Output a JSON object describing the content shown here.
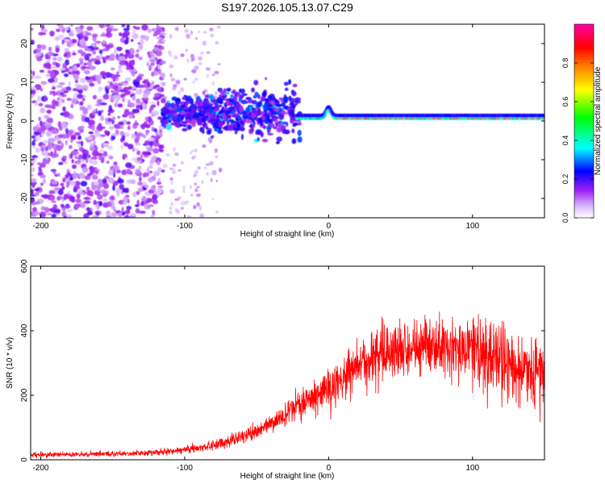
{
  "figure_title": "S197.2026.105.13.07.C29",
  "chart_data": [
    {
      "type": "heatmap",
      "title": "S197.2026.105.13.07.C29",
      "xlabel": "Height of straight line (km)",
      "ylabel": "Frequency (Hz)",
      "xlim": [
        -207,
        150
      ],
      "ylim": [
        -25,
        25
      ],
      "xticks": [
        -200,
        -100,
        0,
        100
      ],
      "xtick_labels": [
        "-200",
        "-100",
        "0",
        "100"
      ],
      "yticks": [
        -20,
        -10,
        0,
        10,
        20
      ],
      "ytick_labels": [
        "-20",
        "-10",
        "0",
        "10",
        "20"
      ],
      "grid": false,
      "colorbar": {
        "label": "Normalized spectral amplitude",
        "range": [
          0,
          1
        ],
        "ticks": [
          0,
          0.2,
          0.4,
          0.6,
          0.8
        ],
        "tick_labels": [
          "0.0",
          "0.2",
          "0.4",
          "0.6",
          "0.8"
        ],
        "colors": [
          "#ffffff",
          "#a020f0",
          "#0000ff",
          "#00ffff",
          "#00ff00",
          "#ffff00",
          "#ff8000",
          "#ff0000",
          "#ff00aa"
        ]
      },
      "features": [
        {
          "region": "noise",
          "x_range": [
            -207,
            -115
          ],
          "y_range": [
            -25,
            25
          ],
          "amplitude": "0.1-0.35"
        },
        {
          "region": "transition",
          "x_range": [
            -115,
            -20
          ],
          "y_range": [
            -10,
            12
          ],
          "amplitude": "0.2-0.45"
        },
        {
          "region": "tone",
          "x_range": [
            -20,
            150
          ],
          "center_hz": 0.6,
          "amplitude": "0.4-0.95"
        },
        {
          "region": "bump",
          "x": 0,
          "center_hz": 2.5
        }
      ]
    },
    {
      "type": "line",
      "xlabel": "Height of straight line (km)",
      "ylabel": "SNR (10 * v/v)",
      "xlim": [
        -207,
        150
      ],
      "ylim": [
        0,
        600
      ],
      "xticks": [
        -200,
        -100,
        0,
        100
      ],
      "xtick_labels": [
        "-200",
        "-100",
        "0",
        "100"
      ],
      "yticks": [
        0,
        200,
        400,
        600
      ],
      "ytick_labels": [
        "0",
        "200",
        "400",
        "600"
      ],
      "grid": false,
      "series": [
        {
          "name": "SNR",
          "color": "#ff0000",
          "envelope_x": [
            -207,
            -150,
            -120,
            -100,
            -80,
            -60,
            -40,
            -20,
            0,
            10,
            20,
            30,
            40,
            60,
            80,
            100,
            110,
            120,
            130,
            140,
            150
          ],
          "envelope_y": [
            15,
            18,
            22,
            30,
            45,
            70,
            110,
            170,
            220,
            250,
            290,
            320,
            340,
            350,
            345,
            340,
            330,
            310,
            290,
            270,
            260
          ]
        }
      ]
    }
  ]
}
